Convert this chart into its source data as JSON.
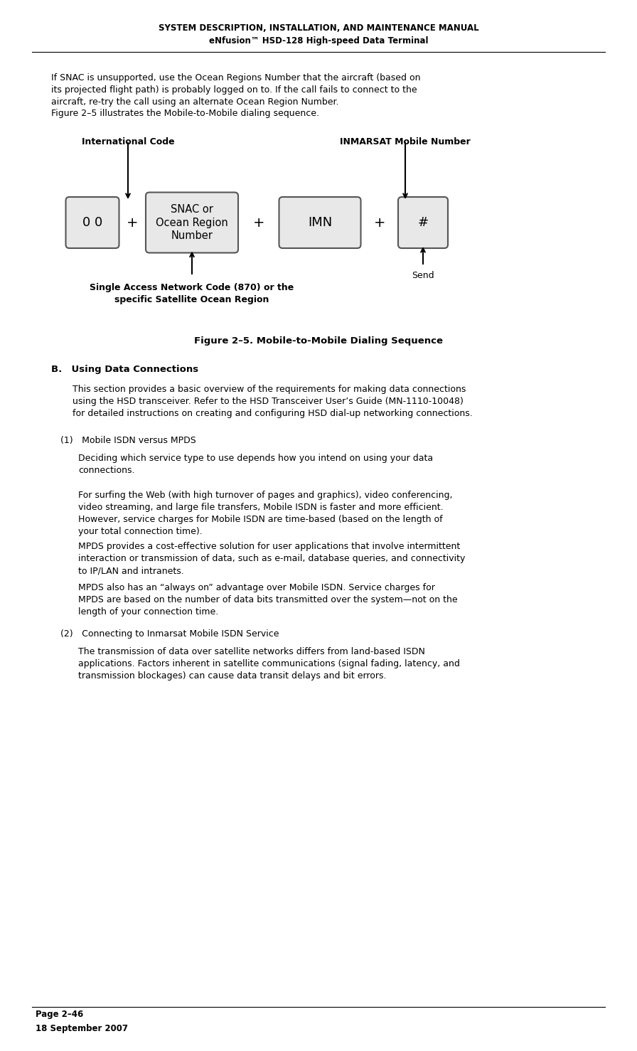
{
  "page_bg": "#ffffff",
  "header_line1": "SYSTEM DESCRIPTION, INSTALLATION, AND MAINTENANCE MANUAL",
  "header_line2": "eNfusion™ HSD-128 High-speed Data Terminal",
  "header_fontsize": 8.5,
  "header_bold": true,
  "body_text1": "If SNAC is unsupported, use the Ocean Regions Number that the aircraft (based on\nits projected flight path) is probably logged on to. If the call fails to connect to the\naircraft, re-try the call using an alternate Ocean Region Number.",
  "body_text2": "Figure 2–5 illustrates the Mobile-to-Mobile dialing sequence.",
  "fig_caption": "Figure 2–5. Mobile-to-Mobile Dialing Sequence",
  "fig_label_left": "International Code",
  "fig_label_right": "INMARSAT Mobile Number",
  "fig_label_bottom": "Single Access Network Code (870) or the\nspecific Satellite Ocean Region",
  "fig_label_send": "Send",
  "box1_text": "0 0",
  "box2_text": "SNAC or\nOcean Region\nNumber",
  "box3_text": "IMN",
  "box4_text": "#",
  "plus_sign": "+",
  "section_b_header": "B. Using Data Connections",
  "section_b_text": "This section provides a basic overview of the requirements for making data connections\nusing the HSD transceiver. Refer to the HSD Transceiver User’s Guide (MN-1110-10048)\nfor detailed instructions on creating and configuring HSD dial-up networking connections.",
  "sub1_header": "(1) Mobile ISDN versus MPDS",
  "sub1_para1": "Deciding which service type to use depends how you intend on using your data\nconnections.",
  "sub1_para2": "For surfing the Web (with high turnover of pages and graphics), video conferencing,\nvideo streaming, and large file transfers, Mobile ISDN is faster and more efficient.\nHowever, service charges for Mobile ISDN are time-based (based on the length of\nyour total connection time).",
  "sub1_para3": "MPDS provides a cost-effective solution for user applications that involve intermittent\ninteraction or transmission of data, such as e-mail, database queries, and connectivity\nto IP/LAN and intranets.",
  "sub1_para4": "MPDS also has an “always on” advantage over Mobile ISDN. Service charges for\nMPDS are based on the number of data bits transmitted over the system—not on the\nlength of your connection time.",
  "sub2_header": "(2) Connecting to Inmarsat Mobile ISDN Service",
  "sub2_para1": "The transmission of data over satellite networks differs from land-based ISDN\napplications. Factors inherent in satellite communications (signal fading, latency, and\ntransmission blockages) can cause data transit delays and bit errors.",
  "footer_line1": "Page 2–46",
  "footer_line2": "18 September 2007",
  "text_color": "#000000",
  "box_fill": "#e8e8e8",
  "box_edge": "#555555",
  "body_fontsize": 9.0,
  "caption_fontsize": 9.5,
  "section_header_fontsize": 9.5,
  "sub_header_fontsize": 9.0,
  "footer_fontsize": 8.5
}
